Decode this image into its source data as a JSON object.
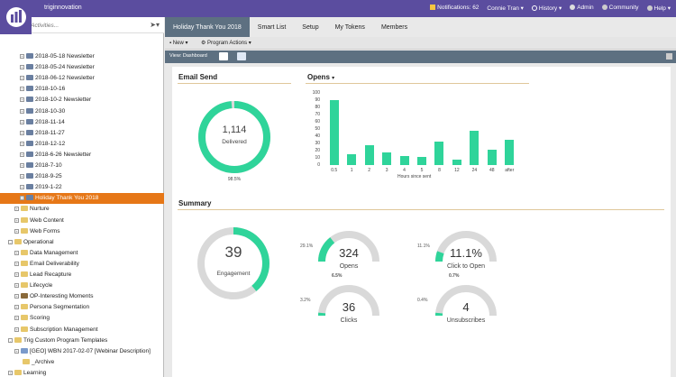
{
  "app": {
    "brand": "triginnovation",
    "nav": {
      "notifications": "Notifications: 62",
      "user": "Connie Tran",
      "history": "History",
      "admin": "Admin",
      "community": "Community",
      "help": "Help"
    }
  },
  "search": {
    "placeholder": "Marketing Activities..."
  },
  "tree": [
    {
      "label": "2018-05-18 Newsletter",
      "icon": "program-icon",
      "indent": 22,
      "twisty": "+"
    },
    {
      "label": "2018-05-24 Newsletter",
      "icon": "program-icon",
      "indent": 22,
      "twisty": "+"
    },
    {
      "label": "2018-06-12 Newsletter",
      "icon": "program-icon",
      "indent": 22,
      "twisty": "+"
    },
    {
      "label": "2018-10-16",
      "icon": "program-icon",
      "indent": 22,
      "twisty": "+"
    },
    {
      "label": "2018-10-2 Newsletter",
      "icon": "program-icon",
      "indent": 22,
      "twisty": "+"
    },
    {
      "label": "2018-10-30",
      "icon": "program-icon",
      "indent": 22,
      "twisty": "+"
    },
    {
      "label": "2018-11-14",
      "icon": "program-icon",
      "indent": 22,
      "twisty": "+"
    },
    {
      "label": "2018-11-27",
      "icon": "program-icon",
      "indent": 22,
      "twisty": "+"
    },
    {
      "label": "2018-12-12",
      "icon": "program-icon",
      "indent": 22,
      "twisty": "+"
    },
    {
      "label": "2018-6-26 Newsletter",
      "icon": "program-icon",
      "indent": 22,
      "twisty": "+"
    },
    {
      "label": "2018-7-10",
      "icon": "program-icon",
      "indent": 22,
      "twisty": "+"
    },
    {
      "label": "2018-9-25",
      "icon": "program-icon",
      "indent": 22,
      "twisty": "+"
    },
    {
      "label": "2019-1-22",
      "icon": "program-icon",
      "indent": 22,
      "twisty": "+"
    },
    {
      "label": "Holiday Thank You 2018",
      "icon": "program-icon",
      "indent": 22,
      "twisty": "+",
      "selected": true
    },
    {
      "label": "Nurture",
      "icon": "folder-icon",
      "indent": 16,
      "twisty": "+"
    },
    {
      "label": "Web Content",
      "icon": "folder-icon",
      "indent": 16,
      "twisty": "+"
    },
    {
      "label": "Web Forms",
      "icon": "folder-icon",
      "indent": 16,
      "twisty": "+"
    },
    {
      "label": "Operational",
      "icon": "folder-icon",
      "indent": 9,
      "twisty": "-"
    },
    {
      "label": "Data Management",
      "icon": "folder-icon",
      "indent": 16,
      "twisty": "+"
    },
    {
      "label": "Email Deliverability",
      "icon": "folder-icon",
      "indent": 16,
      "twisty": "+"
    },
    {
      "label": "Lead Recapture",
      "icon": "folder-icon",
      "indent": 16,
      "twisty": "+"
    },
    {
      "label": "Lifecycle",
      "icon": "folder-icon",
      "indent": 16,
      "twisty": "+"
    },
    {
      "label": "OP-Interesting Moments",
      "icon": "program-group-icon",
      "indent": 16,
      "twisty": "+"
    },
    {
      "label": "Persona Segmentation",
      "icon": "folder-icon",
      "indent": 16,
      "twisty": "+"
    },
    {
      "label": "Scoring",
      "icon": "folder-icon",
      "indent": 16,
      "twisty": "+"
    },
    {
      "label": "Subscription Management",
      "icon": "folder-icon",
      "indent": 16,
      "twisty": "+"
    },
    {
      "label": "Trig Custom Program Templates",
      "icon": "folder-icon",
      "indent": 9,
      "twisty": "-"
    },
    {
      "label": "[GEO] WBN 2017-02-07 [Webinar Description]",
      "icon": "template-icon",
      "indent": 16,
      "twisty": "+"
    },
    {
      "label": "_Archive",
      "icon": "folder-icon",
      "indent": 16,
      "twisty": ""
    },
    {
      "label": "Learning",
      "icon": "folder-icon",
      "indent": 9,
      "twisty": "+"
    }
  ],
  "tabs": [
    {
      "label": "Holiday Thank You 2018",
      "active": true
    },
    {
      "label": "Smart List"
    },
    {
      "label": "Setup"
    },
    {
      "label": "My Tokens"
    },
    {
      "label": "Members"
    }
  ],
  "toolbar": {
    "new": "New",
    "program_actions": "Program Actions"
  },
  "subbar": {
    "view": "View: Dashboard"
  },
  "email_send": {
    "title": "Email Send",
    "value": "1,114",
    "label": "Delivered",
    "pct_text": "98.5%",
    "fraction": 0.985
  },
  "opens_chart": {
    "title": "Opens",
    "chart_data": {
      "type": "bar",
      "categories": [
        "0.5",
        "1",
        "2",
        "3",
        "4",
        "5",
        "8",
        "12",
        "24",
        "48",
        "after"
      ],
      "values": [
        90,
        15,
        27,
        17,
        12,
        11,
        33,
        8,
        48,
        21,
        35
      ],
      "xlabel": "Hours since sent",
      "ylim": [
        0,
        100
      ],
      "yticks": [
        0,
        10,
        20,
        30,
        40,
        50,
        60,
        70,
        80,
        90,
        100
      ]
    }
  },
  "summary": {
    "title": "Summary",
    "engagement": {
      "value": "39",
      "label": "Engagement",
      "fraction": 0.39
    },
    "gauges": [
      {
        "key": "opens",
        "value": "324",
        "label": "Opens",
        "pct": "29.1%",
        "fraction": 0.291
      },
      {
        "key": "click-to-open",
        "value": "11.1%",
        "label": "Click to Open",
        "pct": "11.1%",
        "fraction": 0.111
      },
      {
        "key": "clicks",
        "value": "36",
        "label": "Clicks",
        "pct": "3.2%",
        "extra": "6.5%",
        "fraction": 0.032
      },
      {
        "key": "unsubscribes",
        "value": "4",
        "label": "Unsubscribes",
        "pct": "0.4%",
        "extra": "0.7%",
        "fraction": 0.004
      }
    ]
  },
  "colors": {
    "accent": "#2fd49a",
    "ring_bg": "#d9d9d9",
    "topbar": "#5b4d9f",
    "tab_active": "#5d7081",
    "selected": "#e67717"
  }
}
